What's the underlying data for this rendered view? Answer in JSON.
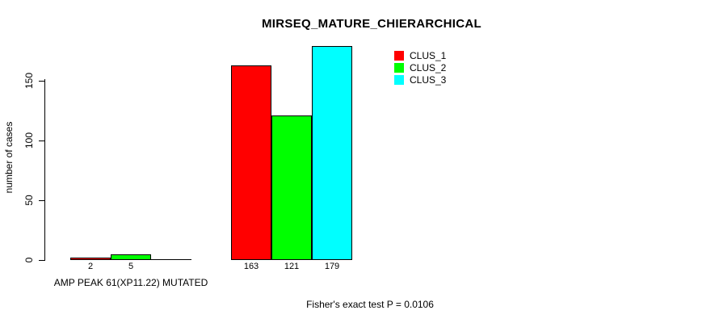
{
  "title": "MIRSEQ_MATURE_CHIERARCHICAL",
  "footer": "Fisher's exact test P = 0.0106",
  "chart_data": {
    "type": "bar",
    "title": "MIRSEQ_MATURE_CHIERARCHICAL",
    "ylabel": "number of cases",
    "xlabel": "",
    "yticks": [
      0,
      50,
      100,
      150
    ],
    "ylim": [
      0,
      185
    ],
    "grid": false,
    "legend_position": "top-right",
    "series": [
      {
        "name": "CLUS_1",
        "color": "#ff0000"
      },
      {
        "name": "CLUS_2",
        "color": "#00ff00"
      },
      {
        "name": "CLUS_3",
        "color": "#00ffff"
      }
    ],
    "groups": [
      {
        "label": "AMP PEAK 61(XP11.22) MUTATED",
        "values": [
          2,
          5,
          0
        ]
      },
      {
        "label": "",
        "values": [
          163,
          121,
          179
        ]
      }
    ],
    "annotation": "Fisher's exact test P = 0.0106"
  }
}
